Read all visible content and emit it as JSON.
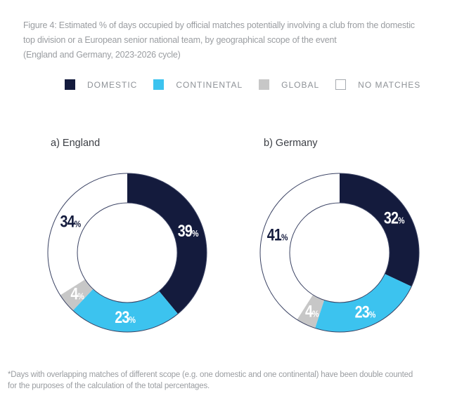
{
  "figure": {
    "title_lines": [
      "Figure 4: Estimated % of days occupied by official matches potentially involving a club from the domestic",
      "top division or a European senior national team, by geographical scope of the event",
      "(England and Germany, 2023-2026 cycle)"
    ],
    "footnote_lines": [
      "*Days with overlapping matches of different scope (e.g. one domestic and one continental) have been double counted",
      "for the purposes of the calculation of the total percentages."
    ]
  },
  "colors": {
    "domestic": "#141B3D",
    "continental": "#3CC3EF",
    "global": "#C7C7C7",
    "no_matches": "#FFFFFF",
    "ring_outline": "#3A4263",
    "label_on_dark": "#FFFFFF",
    "label_on_light": "#141B3D"
  },
  "legend": {
    "items": [
      {
        "label": "DOMESTIC",
        "color_key": "domestic"
      },
      {
        "label": "CONTINENTAL",
        "color_key": "continental"
      },
      {
        "label": "GLOBAL",
        "color_key": "global"
      },
      {
        "label": "NO MATCHES",
        "color_key": "no_matches"
      }
    ]
  },
  "chart_data": [
    {
      "type": "pie",
      "variant": "donut",
      "id": "england",
      "title": "a) England",
      "categories": [
        "DOMESTIC",
        "CONTINENTAL",
        "GLOBAL",
        "NO MATCHES"
      ],
      "values": [
        39,
        23,
        4,
        34
      ],
      "unit": "%",
      "start_angle_deg": 0,
      "direction": "clockwise",
      "legend_position": "top",
      "slices": [
        {
          "category": "DOMESTIC",
          "value": 39,
          "color_key": "domestic",
          "label": "39%"
        },
        {
          "category": "CONTINENTAL",
          "value": 23,
          "color_key": "continental",
          "label": "23%"
        },
        {
          "category": "GLOBAL",
          "value": 4,
          "color_key": "global",
          "label": "4%"
        },
        {
          "category": "NO MATCHES",
          "value": 34,
          "color_key": "no_matches",
          "label": "34%"
        }
      ]
    },
    {
      "type": "pie",
      "variant": "donut",
      "id": "germany",
      "title": "b) Germany",
      "categories": [
        "DOMESTIC",
        "CONTINENTAL",
        "GLOBAL",
        "NO MATCHES"
      ],
      "values": [
        32,
        23,
        4,
        41
      ],
      "unit": "%",
      "start_angle_deg": 0,
      "direction": "clockwise",
      "legend_position": "top",
      "slices": [
        {
          "category": "DOMESTIC",
          "value": 32,
          "color_key": "domestic",
          "label": "32%"
        },
        {
          "category": "CONTINENTAL",
          "value": 23,
          "color_key": "continental",
          "label": "23%"
        },
        {
          "category": "GLOBAL",
          "value": 4,
          "color_key": "global",
          "label": "4%"
        },
        {
          "category": "NO MATCHES",
          "value": 41,
          "color_key": "no_matches",
          "label": "41%"
        }
      ]
    }
  ]
}
